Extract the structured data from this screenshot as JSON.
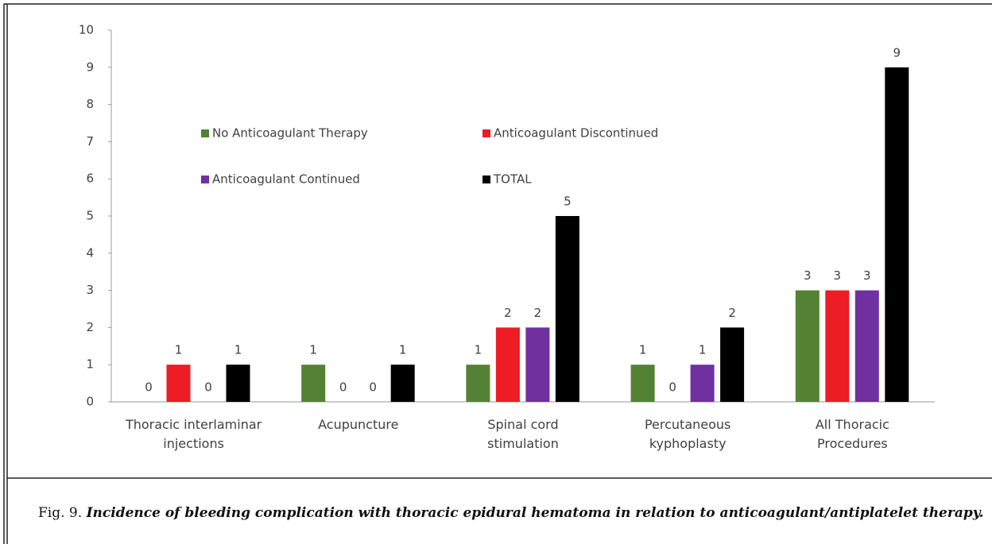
{
  "chart_data": {
    "type": "bar",
    "categories": [
      "Thoracic interlaminar\ninjections",
      "Acupuncture",
      "Spinal cord\nstimulation",
      "Percutaneous\nkyphoplasty",
      "All Thoracic\nProcedures"
    ],
    "series": [
      {
        "name": "No Anticoagulant Therapy",
        "color": "#548235",
        "values": [
          0,
          1,
          1,
          1,
          3
        ]
      },
      {
        "name": "Anticoagulant Discontinued",
        "color": "#ee1c25",
        "values": [
          1,
          0,
          2,
          0,
          3
        ]
      },
      {
        "name": "Anticoagulant Continued",
        "color": "#7030a0",
        "values": [
          0,
          0,
          2,
          1,
          3
        ]
      },
      {
        "name": "TOTAL",
        "color": "#000000",
        "values": [
          1,
          1,
          5,
          2,
          9
        ]
      }
    ],
    "ylim": [
      0,
      10
    ],
    "yticks": [
      0,
      1,
      2,
      3,
      4,
      5,
      6,
      7,
      8,
      9,
      10
    ],
    "grid": false,
    "legend": "inside-top"
  },
  "caption": {
    "label": "Fig. 9.",
    "text": "Incidence of  bleeding complication with thoracic epidural hematoma in relation to anticoagulant/antiplatelet therapy."
  }
}
